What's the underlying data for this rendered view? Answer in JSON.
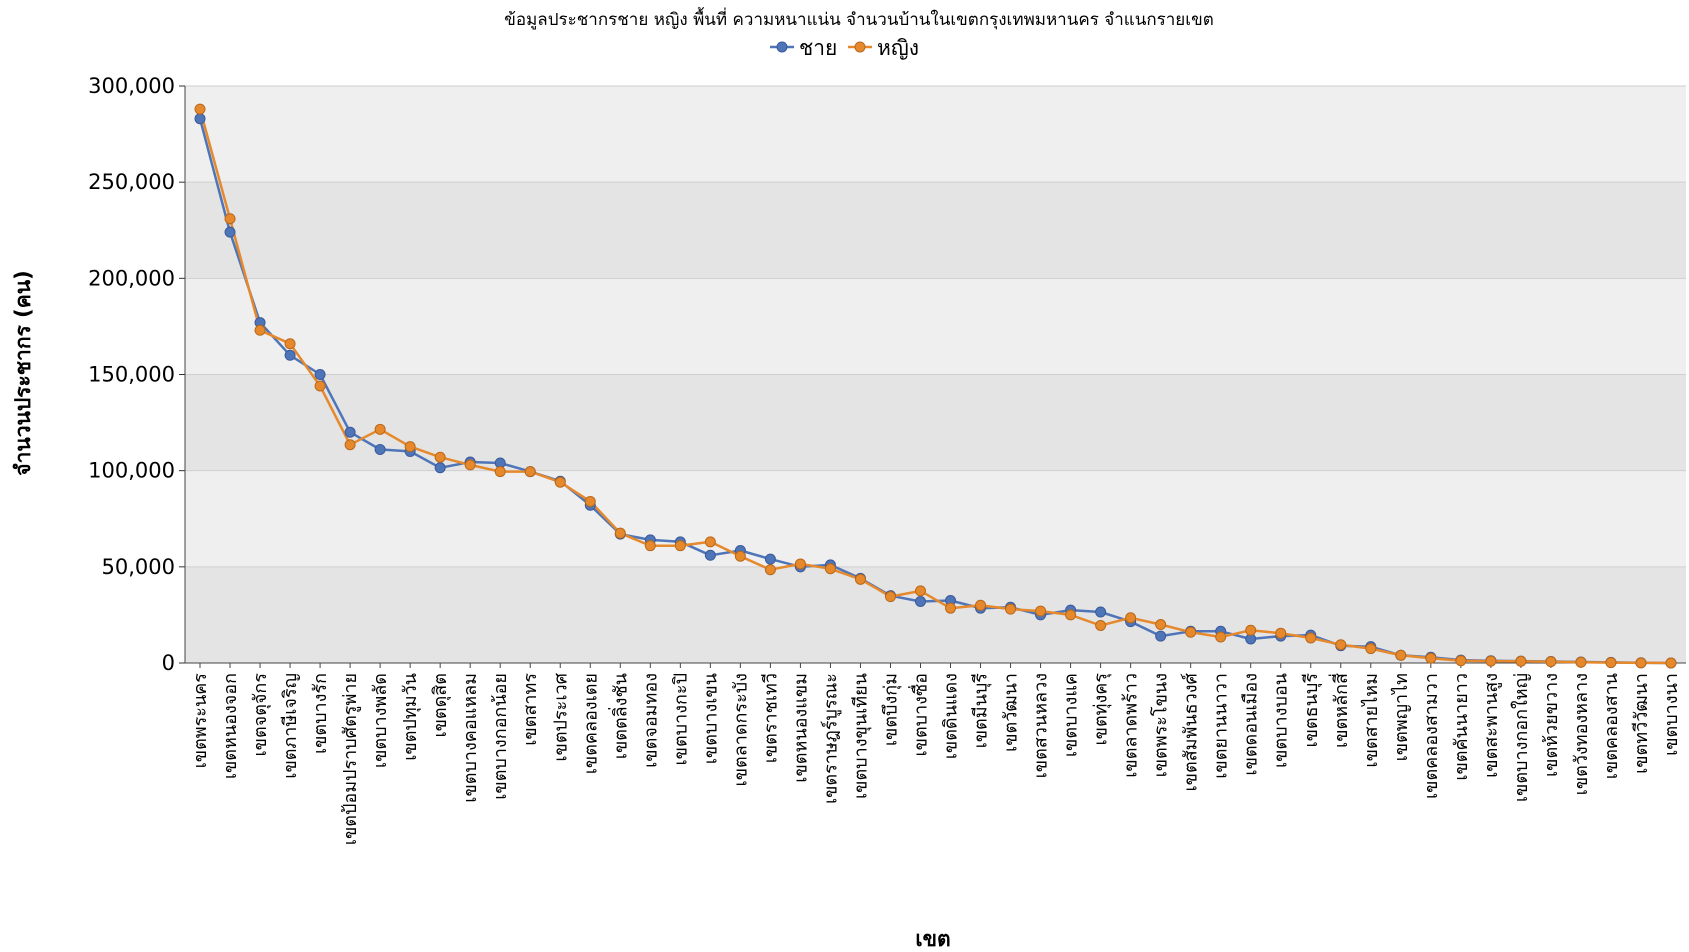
{
  "chart_data": {
    "type": "line",
    "title": "ข้อมูลประชากรชาย หญิง พื้นที่ ความหนาแน่น จำนวนบ้านในเขตกรุงเทพมหานคร จำแนกรายเขต",
    "xlabel": "เขต",
    "ylabel": "จำนวนประชากร (คน)",
    "ylim": [
      0,
      300000
    ],
    "yticks": [
      "0",
      "50,000",
      "100,000",
      "150,000",
      "200,000",
      "250,000",
      "300,000"
    ],
    "legend_position": "top-center",
    "grid": true,
    "categories": [
      "เขตพระนคร",
      "เขตหนองจอก",
      "เขตจตุจักร",
      "เขตภาษีเจริญ",
      "เขตบางรัก",
      "เขตป้อมปราบศัตรูพ่าย",
      "เขตบางพลัด",
      "เขตปทุมวัน",
      "เขตดุสิต",
      "เขตบางคอแหลม",
      "เขตบางกอกน้อย",
      "เขตสาทร",
      "เขตประเวศ",
      "เขตคลองเตย",
      "เขตตลิ่งชัน",
      "เขตจอมทอง",
      "เขตบางกะปิ",
      "เขตบางเขน",
      "เขตลาดกระบัง",
      "เขตราชเทวี",
      "เขตหนองแขม",
      "เขตราษฎร์บูรณะ",
      "เขตบางขุนเทียน",
      "เขตบึงกุ่ม",
      "เขตบางซื่อ",
      "เขตดินแดง",
      "เขตมีนบุรี",
      "เขตวัฒนา",
      "เขตสวนหลวง",
      "เขตบางแค",
      "เขตทุ่งครุ",
      "เขตลาดพร้าว",
      "เขตพระโขนง",
      "เขตสัมพันธวงศ์",
      "เขตยานนาวา",
      "เขตดอนเมือง",
      "เขตบางบอน",
      "เขตธนบุรี",
      "เขตหลักสี่",
      "เขตสายไหม",
      "เขตพญาไท",
      "เขตคลองสามวา",
      "เขตคันนายาว",
      "เขตสะพานสูง",
      "เขตบางกอกใหญ่",
      "เขตห้วยขวาง",
      "เขตวังทองหลาง",
      "เขตคลองสาน",
      "เขตทวีวัฒนา",
      "เขตบางนา"
    ],
    "series": [
      {
        "name": "ชาย",
        "color": "#4F75B9",
        "values": [
          283000,
          224000,
          177000,
          160000,
          150000,
          120000,
          111000,
          110000,
          101500,
          104500,
          104000,
          99500,
          94500,
          82000,
          67000,
          64000,
          63000,
          56000,
          58500,
          54000,
          50000,
          51000,
          44000,
          35000,
          32000,
          32500,
          28500,
          29000,
          25000,
          27500,
          26500,
          21500,
          14000,
          16500,
          16500,
          12500,
          14000,
          14500,
          9000,
          8500,
          4000,
          3000,
          1500,
          1200,
          1000,
          800,
          500,
          300,
          100,
          0
        ]
      },
      {
        "name": "หญิง",
        "color": "#E6892D",
        "values": [
          288000,
          231000,
          173000,
          166000,
          144000,
          113500,
          121500,
          112500,
          107000,
          103000,
          99500,
          99500,
          94000,
          84000,
          67500,
          61000,
          61000,
          63000,
          55500,
          48500,
          51500,
          49000,
          43500,
          34500,
          37500,
          28500,
          30000,
          28000,
          27000,
          25000,
          19500,
          23500,
          20000,
          16000,
          13500,
          17000,
          15500,
          13000,
          9500,
          7500,
          4000,
          2500,
          1200,
          1000,
          900,
          700,
          400,
          200,
          50,
          0
        ]
      }
    ]
  }
}
